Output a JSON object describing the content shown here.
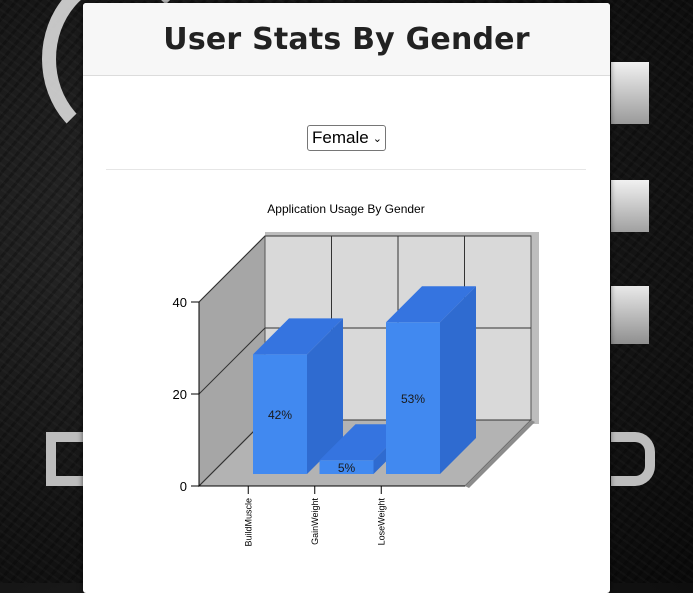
{
  "header": {
    "title": "User Stats By Gender"
  },
  "filter": {
    "selected": "Female",
    "icon": "chevron-down-icon"
  },
  "chart_data": {
    "type": "bar",
    "title": "Application Usage By Gender",
    "categories": [
      "BuildMuscle",
      "GainWeight",
      "LoseWeight"
    ],
    "values": [
      26,
      3,
      33
    ],
    "data_labels": [
      "42%",
      "5%",
      "53%"
    ],
    "ylim": [
      0,
      40
    ],
    "yticks": [
      0,
      20,
      40
    ],
    "grid": true,
    "style": "3d",
    "colors": {
      "bar_front": "#4189f0",
      "bar_side": "#2f6bd0",
      "bar_top": "#3574e0",
      "wall": "#d9d9d9",
      "side_wall": "#a6a6a6"
    }
  }
}
